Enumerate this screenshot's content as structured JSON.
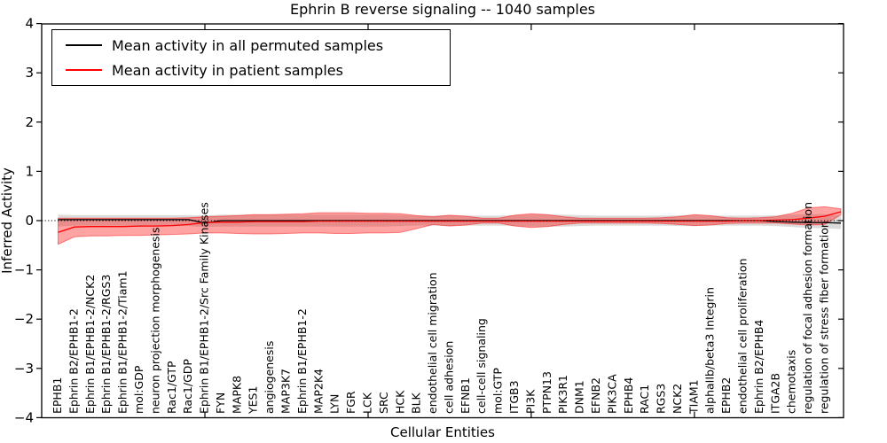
{
  "title": "Ephrin B reverse signaling -- 1040 samples",
  "axes": {
    "x_label": "Cellular Entities",
    "y_label": "Inferred Activity",
    "y_ticks": [
      "4",
      "3",
      "2",
      "1",
      "0",
      "−1",
      "−2",
      "−3",
      "−4"
    ],
    "y_lim": [
      -4,
      4
    ],
    "zero_line": 0
  },
  "legend": {
    "items": [
      {
        "label": "Mean activity in all permuted samples",
        "color": "#000000"
      },
      {
        "label": "Mean activity in patient samples",
        "color": "#ff0000"
      }
    ]
  },
  "chart_data": {
    "type": "line",
    "title": "Ephrin B reverse signaling -- 1040 samples",
    "xlabel": "Cellular Entities",
    "ylabel": "Inferred Activity",
    "ylim": [
      -4,
      4
    ],
    "grid": false,
    "legend_position": "upper left",
    "categories": [
      "EPHB1",
      "Ephrin B2/EPHB1-2",
      "Ephrin B1/EPHB1-2/NCK2",
      "Ephrin B1/EPHB1-2/RGS3",
      "Ephrin B1/EPHB1-2/Tiam1",
      "mol:GDP",
      "neuron projection morphogenesis",
      "Rac1/GTP",
      "Rac1/GDP",
      "Ephrin B1/EPHB1-2/Src Family Kinases",
      "FYN",
      "MAPK8",
      "YES1",
      "angiogenesis",
      "MAP3K7",
      "Ephrin B1/EPHB1-2",
      "MAP2K4",
      "LYN",
      "FGR",
      "LCK",
      "SRC",
      "HCK",
      "BLK",
      "endothelial cell migration",
      "cell adhesion",
      "EFNB1",
      "cell-cell signaling",
      "mol:GTP",
      "ITGB3",
      "PI3K",
      "PTPN13",
      "PIK3R1",
      "DNM1",
      "EFNB2",
      "PIK3CA",
      "EPHB4",
      "RAC1",
      "RGS3",
      "NCK2",
      "TIAM1",
      "alphaIIb/beta3 Integrin",
      "EPHB2",
      "endothelial cell proliferation",
      "Ephrin B2/EPHB4",
      "ITGA2B",
      "chemotaxis",
      "regulation of focal adhesion formation",
      "regulation of stress fiber formation"
    ],
    "series": [
      {
        "name": "Mean activity in all permuted samples",
        "color": "#000000",
        "band_color": "#000000",
        "values": [
          0.02,
          0.02,
          0.02,
          0.02,
          0.02,
          0.02,
          0.02,
          0.02,
          0.02,
          -0.05,
          0,
          0,
          0,
          0,
          0,
          0,
          0,
          0,
          0,
          0,
          0,
          0,
          0,
          0,
          0,
          0,
          0,
          0,
          0,
          0,
          0,
          0,
          0,
          0,
          0,
          0,
          0,
          0,
          0,
          0,
          0,
          0,
          0,
          0,
          -0.02,
          -0.03,
          -0.04,
          -0.04
        ],
        "band_low": [
          -0.12,
          -0.1,
          -0.1,
          -0.1,
          -0.1,
          -0.1,
          -0.1,
          -0.1,
          -0.11,
          -0.13,
          -0.12,
          -0.12,
          -0.12,
          -0.12,
          -0.12,
          -0.12,
          -0.12,
          -0.12,
          -0.12,
          -0.12,
          -0.12,
          -0.11,
          -0.1,
          -0.1,
          -0.11,
          -0.1,
          -0.1,
          -0.1,
          -0.11,
          -0.12,
          -0.12,
          -0.12,
          -0.11,
          -0.1,
          -0.1,
          -0.1,
          -0.1,
          -0.1,
          -0.11,
          -0.11,
          -0.1,
          -0.1,
          -0.1,
          -0.1,
          -0.11,
          -0.13,
          -0.15,
          -0.16
        ],
        "band_high": [
          0.12,
          0.11,
          0.11,
          0.11,
          0.11,
          0.11,
          0.11,
          0.11,
          0.11,
          0.1,
          0.12,
          0.12,
          0.12,
          0.12,
          0.12,
          0.12,
          0.12,
          0.12,
          0.12,
          0.12,
          0.12,
          0.11,
          0.1,
          0.1,
          0.11,
          0.1,
          0.1,
          0.1,
          0.11,
          0.12,
          0.12,
          0.12,
          0.11,
          0.1,
          0.1,
          0.1,
          0.1,
          0.1,
          0.11,
          0.11,
          0.1,
          0.1,
          0.1,
          0.1,
          0.11,
          0.12,
          0.13,
          0.13
        ]
      },
      {
        "name": "Mean activity in patient samples",
        "color": "#ff0000",
        "band_color": "#ff0000",
        "values": [
          -0.24,
          -0.13,
          -0.12,
          -0.12,
          -0.12,
          -0.11,
          -0.11,
          -0.1,
          -0.08,
          -0.04,
          -0.03,
          -0.03,
          -0.02,
          -0.02,
          -0.02,
          -0.02,
          -0.01,
          -0.01,
          -0.01,
          -0.01,
          -0.01,
          -0.01,
          -0.01,
          -0.01,
          -0.01,
          -0.01,
          -0.01,
          -0.01,
          -0.01,
          -0.01,
          -0.01,
          -0.01,
          -0.01,
          -0.01,
          -0.01,
          -0.01,
          -0.01,
          -0.01,
          -0.01,
          -0.01,
          -0.01,
          -0.01,
          0,
          0,
          0.01,
          0.02,
          0.05,
          0.09
        ],
        "band_low": [
          -0.48,
          -0.33,
          -0.31,
          -0.31,
          -0.3,
          -0.3,
          -0.29,
          -0.28,
          -0.27,
          -0.25,
          -0.25,
          -0.26,
          -0.27,
          -0.27,
          -0.26,
          -0.25,
          -0.25,
          -0.26,
          -0.26,
          -0.25,
          -0.25,
          -0.24,
          -0.16,
          -0.08,
          -0.11,
          -0.09,
          -0.05,
          -0.05,
          -0.11,
          -0.14,
          -0.12,
          -0.08,
          -0.05,
          -0.05,
          -0.05,
          -0.05,
          -0.05,
          -0.06,
          -0.08,
          -0.1,
          -0.09,
          -0.06,
          -0.05,
          -0.05,
          -0.05,
          -0.07,
          -0.09,
          -0.08
        ],
        "band_high": [
          0.05,
          0.05,
          0.05,
          0.05,
          0.05,
          0.05,
          0.05,
          0.05,
          0.06,
          0.08,
          0.09,
          0.1,
          0.12,
          0.12,
          0.13,
          0.14,
          0.16,
          0.16,
          0.16,
          0.15,
          0.15,
          0.14,
          0.1,
          0.08,
          0.11,
          0.09,
          0.05,
          0.05,
          0.11,
          0.14,
          0.12,
          0.08,
          0.05,
          0.05,
          0.05,
          0.05,
          0.05,
          0.06,
          0.08,
          0.12,
          0.1,
          0.06,
          0.05,
          0.06,
          0.08,
          0.15,
          0.26,
          0.28
        ]
      }
    ],
    "right_edge_point": {
      "permuted": -0.05,
      "permuted_low": -0.17,
      "permuted_high": 0.1,
      "patient": 0.18,
      "patient_low": 0.12,
      "patient_high": 0.24
    },
    "x_major_tick_indices": [
      9,
      19,
      29,
      39
    ]
  }
}
